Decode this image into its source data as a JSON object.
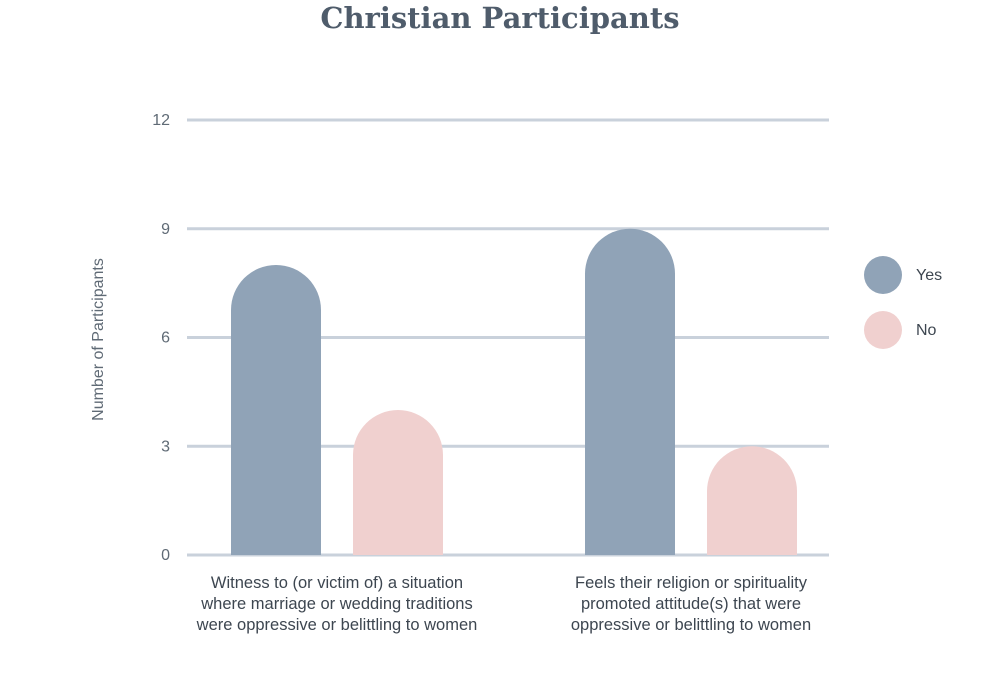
{
  "chart_data": {
    "type": "bar",
    "title": "Christian Participants",
    "ylabel": "Number of Participants",
    "xlabel": "",
    "ylim": [
      0,
      12
    ],
    "yticks": [
      0,
      3,
      6,
      9,
      12
    ],
    "grid": true,
    "legend_position": "right",
    "categories": [
      [
        "Witness to (or victim of) a situation",
        "where marriage or wedding traditions",
        "were oppressive or belittling to women"
      ],
      [
        "Feels their religion or spirituality",
        "promoted attitude(s) that were",
        "oppressive or belittling to women"
      ]
    ],
    "series": [
      {
        "name": "Yes",
        "color": "#90a3b7",
        "values": [
          8,
          9
        ]
      },
      {
        "name": "No",
        "color": "#f0d0cf",
        "values": [
          4,
          3
        ]
      }
    ],
    "gridline_color": "#c9d1db"
  }
}
